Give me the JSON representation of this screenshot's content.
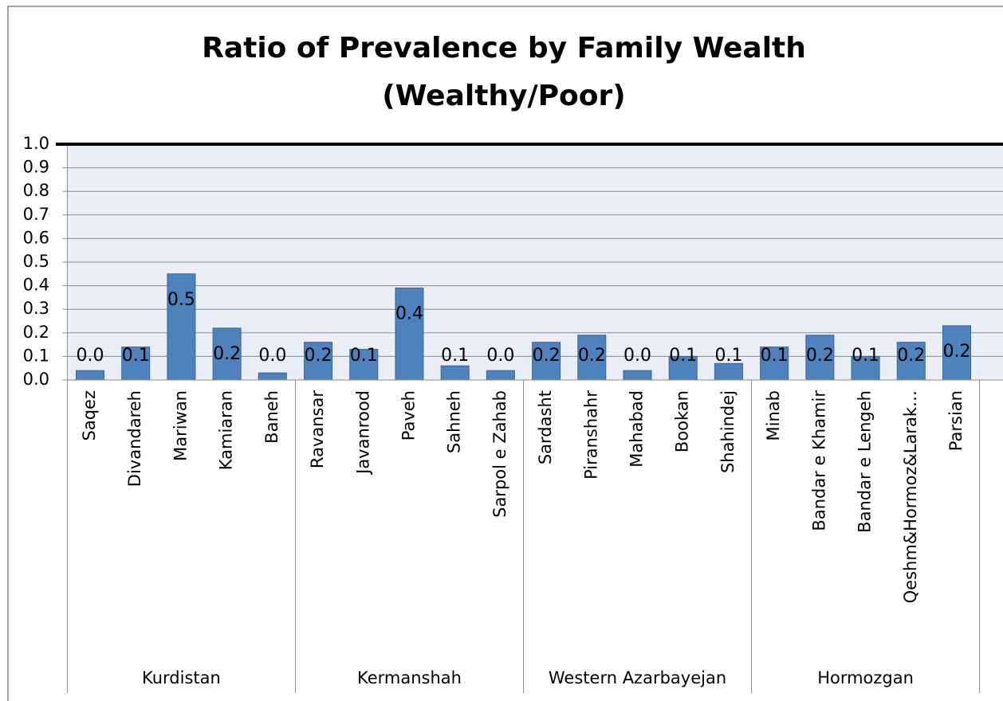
{
  "chart_data": {
    "type": "bar",
    "title": [
      "Ratio of Prevalence by Family Wealth",
      "(Wealthy/Poor)"
    ],
    "categories": [
      "Saqez",
      "Divandareh",
      "Mariwan",
      "Kamiaran",
      "Baneh",
      "Ravansar",
      "Javanrood",
      "Paveh",
      "Sahneh",
      "Sarpol e Zahab",
      "Sardasht",
      "Piranshahr",
      "Mahabad",
      "Bookan",
      "Shahindej",
      "Minab",
      "Bandar e Khamir",
      "Bandar e Lengeh",
      "Qeshm&Hormoz&Larak…",
      "Parsian"
    ],
    "groups": [
      "Kurdistan",
      "Kermanshah",
      "Western Azarbayejan",
      "Hormozgan"
    ],
    "values": [
      0.04,
      0.14,
      0.45,
      0.22,
      0.03,
      0.16,
      0.13,
      0.39,
      0.06,
      0.04,
      0.16,
      0.19,
      0.04,
      0.1,
      0.07,
      0.14,
      0.19,
      0.1,
      0.16,
      0.23
    ],
    "value_labels": [
      "0.0",
      "0.1",
      "0.5",
      "0.2",
      "0.0",
      "0.2",
      "0.1",
      "0.4",
      "0.1",
      "0.0",
      "0.2",
      "0.2",
      "0.0",
      "0.1",
      "0.1",
      "0.1",
      "0.2",
      "0.1",
      "0.2",
      "0.2"
    ],
    "color": "#4f81bd",
    "ylim": [
      0,
      1
    ],
    "yticks": [
      {
        "value": 0,
        "label": "0.0"
      },
      {
        "value": 0.1,
        "label": "0.1"
      },
      {
        "value": 0.2,
        "label": "0.2"
      },
      {
        "value": 0.3,
        "label": "0.3"
      },
      {
        "value": 0.4,
        "label": "0.4"
      },
      {
        "value": 0.5,
        "label": "0.5"
      },
      {
        "value": 0.6,
        "label": "0.6"
      },
      {
        "value": 0.7,
        "label": "0.7"
      },
      {
        "value": 0.8,
        "label": "0.8"
      },
      {
        "value": 0.9,
        "label": "0.9"
      },
      {
        "value": 1,
        "label": "1.0"
      }
    ],
    "reference_line": 1,
    "grid": true
  }
}
